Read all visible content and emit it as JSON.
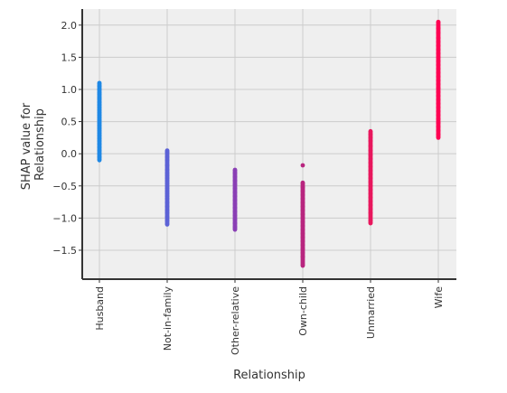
{
  "chart_data": {
    "type": "scatter",
    "title": "",
    "xlabel": "Relationship",
    "ylabel_lines": [
      "SHAP value for",
      "Relationship"
    ],
    "categories": [
      "Husband",
      "Not-in-family",
      "Other-relative",
      "Own-child",
      "Unmarried",
      "Wife"
    ],
    "ylim": [
      -1.95,
      2.25
    ],
    "yticks": [
      {
        "value": 2.0,
        "label": "2.0"
      },
      {
        "value": 1.5,
        "label": "1.5"
      },
      {
        "value": 1.0,
        "label": "1.0"
      },
      {
        "value": 0.5,
        "label": "0.5"
      },
      {
        "value": 0.0,
        "label": "0.0"
      },
      {
        "value": -0.5,
        "label": "−0.5"
      },
      {
        "value": -1.0,
        "label": "−1.0"
      },
      {
        "value": -1.5,
        "label": "−1.5"
      }
    ],
    "grid": true,
    "background_color": "#efefef",
    "series": [
      {
        "category": "Husband",
        "color": "#1e88e5",
        "y": [
          1.1,
          1.05,
          1.0,
          0.95,
          0.92,
          0.88,
          0.85,
          0.8,
          0.76,
          0.72,
          0.68,
          0.64,
          0.6,
          0.56,
          0.52,
          0.48,
          0.44,
          0.4,
          0.36,
          0.32,
          0.28,
          0.24,
          0.2,
          0.15,
          0.1,
          0.05,
          0.0,
          -0.05,
          -0.1
        ]
      },
      {
        "category": "Not-in-family",
        "color": "#5c62d6",
        "y": [
          0.05,
          0.02,
          -0.05,
          -0.1,
          -0.18,
          -0.25,
          -0.3,
          -0.34,
          -0.38,
          -0.42,
          -0.46,
          -0.5,
          -0.54,
          -0.58,
          -0.62,
          -0.66,
          -0.7,
          -0.76,
          -0.82,
          -0.88,
          -0.92,
          -0.98,
          -1.04,
          -1.1
        ]
      },
      {
        "category": "Other-relative",
        "color": "#8a3fb5",
        "y": [
          -0.25,
          -0.3,
          -0.36,
          -0.42,
          -0.48,
          -0.54,
          -0.6,
          -0.66,
          -0.72,
          -0.78,
          -0.84,
          -0.9,
          -0.96,
          -1.02,
          -1.08,
          -1.14,
          -1.18
        ]
      },
      {
        "category": "Own-child",
        "color": "#b8257f",
        "y": [
          -0.18,
          -0.45,
          -0.52,
          -0.58,
          -0.64,
          -0.7,
          -0.76,
          -0.82,
          -0.88,
          -0.94,
          -1.0,
          -1.06,
          -1.12,
          -1.18,
          -1.24,
          -1.3,
          -1.36,
          -1.42,
          -1.48,
          -1.54,
          -1.6,
          -1.74
        ]
      },
      {
        "category": "Unmarried",
        "color": "#e8175d",
        "y": [
          0.35,
          0.3,
          0.25,
          0.2,
          0.12,
          0.05,
          -0.02,
          -0.08,
          -0.14,
          -0.2,
          -0.26,
          -0.32,
          -0.38,
          -0.44,
          -0.5,
          -0.56,
          -0.62,
          -0.68,
          -0.74,
          -0.8,
          -0.86,
          -0.92,
          -1.04,
          -1.08
        ]
      },
      {
        "category": "Wife",
        "color": "#ff0052",
        "y": [
          2.05,
          1.95,
          1.88,
          1.8,
          1.74,
          1.68,
          1.62,
          1.56,
          1.5,
          1.44,
          1.38,
          1.32,
          1.26,
          1.2,
          1.14,
          1.08,
          1.02,
          0.96,
          0.9,
          0.84,
          0.78,
          0.72,
          0.66,
          0.6,
          0.54,
          0.48,
          0.42,
          0.36,
          0.3,
          0.25
        ]
      }
    ]
  }
}
